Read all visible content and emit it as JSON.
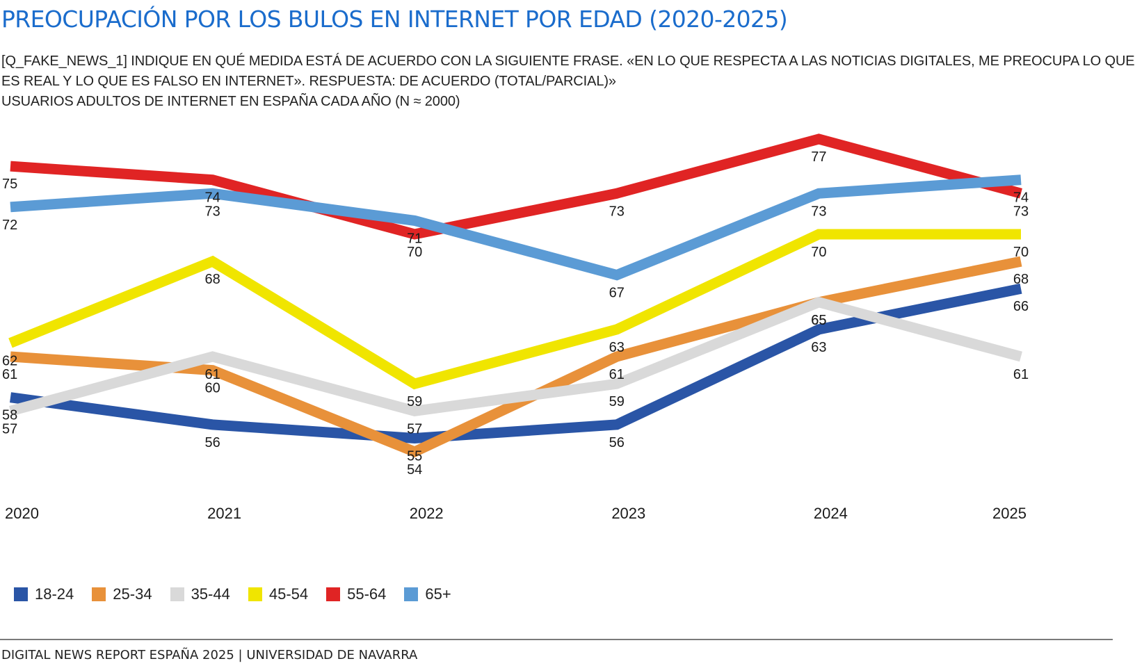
{
  "header": {
    "title": "PREOCUPACIÓN POR LOS BULOS EN INTERNET POR EDAD (2020-2025)",
    "subtitle_line1": "[Q_FAKE_NEWS_1] INDIQUE EN QUÉ MEDIDA ESTÁ DE ACUERDO CON LA SIGUIENTE FRASE. «EN LO QUE RESPECTA A LAS NOTICIAS DIGITALES, ME PREOCUPA LO QUE",
    "subtitle_line2": "ES REAL Y LO QUE ES FALSO EN INTERNET». RESPUESTA: DE ACUERDO (TOTAL/PARCIAL)»",
    "subtitle_line3": "USUARIOS ADULTOS DE INTERNET EN ESPAÑA CADA AÑO (N ≈ 2000)"
  },
  "footer": {
    "source": "DIGITAL NEWS REPORT ESPAÑA 2025 | UNIVERSIDAD DE NAVARRA"
  },
  "chart_data": {
    "type": "line",
    "x": [
      "2020",
      "2021",
      "2022",
      "2023",
      "2024",
      "2025"
    ],
    "ylim": [
      50,
      80
    ],
    "grid": false,
    "legend": "bottom-left",
    "series": [
      {
        "name": "18-24",
        "color": "#2a55a6",
        "values": [
          58,
          56,
          55,
          56,
          63,
          66
        ]
      },
      {
        "name": "25-34",
        "color": "#e8913a",
        "values": [
          61,
          60,
          54,
          61,
          65,
          68
        ]
      },
      {
        "name": "35-44",
        "color": "#d9d9d9",
        "values": [
          57,
          61,
          57,
          59,
          65,
          61
        ]
      },
      {
        "name": "45-54",
        "color": "#f0e500",
        "values": [
          62,
          68,
          59,
          63,
          70,
          70
        ]
      },
      {
        "name": "55-64",
        "color": "#e02424",
        "values": [
          75,
          74,
          70,
          73,
          77,
          73
        ]
      },
      {
        "name": "65+",
        "color": "#5b9bd5",
        "values": [
          72,
          73,
          71,
          67,
          73,
          74
        ]
      }
    ]
  }
}
